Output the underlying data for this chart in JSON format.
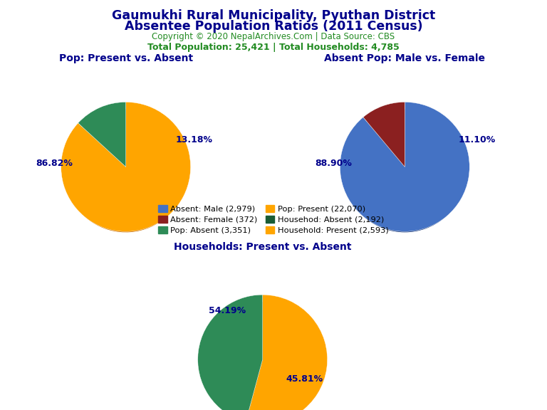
{
  "title_line1": "Gaumukhi Rural Municipality, Pyuthan District",
  "title_line2": "Absentee Population Ratios (2011 Census)",
  "title_color": "#00008B",
  "copyright_text": "Copyright © 2020 NepalArchives.Com | Data Source: CBS",
  "copyright_color": "#228B22",
  "stats_text": "Total Population: 25,421 | Total Households: 4,785",
  "stats_color": "#228B22",
  "pie1_title": "Pop: Present vs. Absent",
  "pie1_values": [
    86.82,
    13.18
  ],
  "pie1_colors": [
    "#FFA500",
    "#2E8B57"
  ],
  "pie1_shadow_colors": [
    "#CC7000",
    "#1A5C35"
  ],
  "pie1_labels": [
    "86.82%",
    "13.18%"
  ],
  "pie2_title": "Absent Pop: Male vs. Female",
  "pie2_values": [
    88.9,
    11.1
  ],
  "pie2_colors": [
    "#4472C4",
    "#8B2020"
  ],
  "pie2_shadow_colors": [
    "#1A3A7A",
    "#5C1010"
  ],
  "pie2_labels": [
    "88.90%",
    "11.10%"
  ],
  "pie3_title": "Households: Present vs. Absent",
  "pie3_values": [
    54.19,
    45.81
  ],
  "pie3_colors": [
    "#FFA500",
    "#2E8B57"
  ],
  "pie3_shadow_colors": [
    "#CC7000",
    "#1A5C35"
  ],
  "pie3_labels": [
    "54.19%",
    "45.81%"
  ],
  "subtitle_color": "#00008B",
  "pct_color": "#00008B",
  "legend_items": [
    {
      "label": "Absent: Male (2,979)",
      "color": "#4472C4"
    },
    {
      "label": "Absent: Female (372)",
      "color": "#8B2020"
    },
    {
      "label": "Pop: Absent (3,351)",
      "color": "#2E8B57"
    },
    {
      "label": "Pop: Present (22,070)",
      "color": "#FFA500"
    },
    {
      "label": "Househod: Absent (2,192)",
      "color": "#1A5C35"
    },
    {
      "label": "Household: Present (2,593)",
      "color": "#FFA500"
    }
  ],
  "background_color": "#FFFFFF",
  "depth": 0.12
}
